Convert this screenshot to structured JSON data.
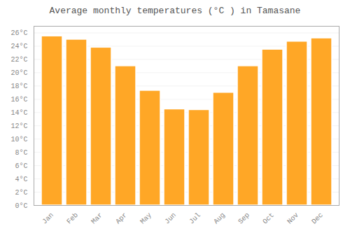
{
  "chart_data": {
    "type": "bar",
    "title": "Average monthly temperatures (°C ) in Tamasane",
    "categories": [
      "Jan",
      "Feb",
      "Mar",
      "Apr",
      "May",
      "Jun",
      "Jul",
      "Aug",
      "Sep",
      "Oct",
      "Nov",
      "Dec"
    ],
    "values": [
      25.5,
      25.0,
      23.8,
      21.0,
      17.3,
      14.5,
      14.4,
      17.0,
      21.0,
      23.5,
      24.7,
      25.2
    ],
    "color": "#FFA726",
    "ylim": [
      0,
      27
    ],
    "yticks": [
      {
        "value": 0,
        "label": "0°C"
      },
      {
        "value": 2,
        "label": "2°C"
      },
      {
        "value": 4,
        "label": "4°C"
      },
      {
        "value": 6,
        "label": "6°C"
      },
      {
        "value": 8,
        "label": "8°C"
      },
      {
        "value": 10,
        "label": "10°C"
      },
      {
        "value": 12,
        "label": "12°C"
      },
      {
        "value": 14,
        "label": "14°C"
      },
      {
        "value": 16,
        "label": "16°C"
      },
      {
        "value": 18,
        "label": "18°C"
      },
      {
        "value": 20,
        "label": "20°C"
      },
      {
        "value": 22,
        "label": "22°C"
      },
      {
        "value": 24,
        "label": "24°C"
      },
      {
        "value": 26,
        "label": "26°C"
      }
    ],
    "grid": true
  }
}
